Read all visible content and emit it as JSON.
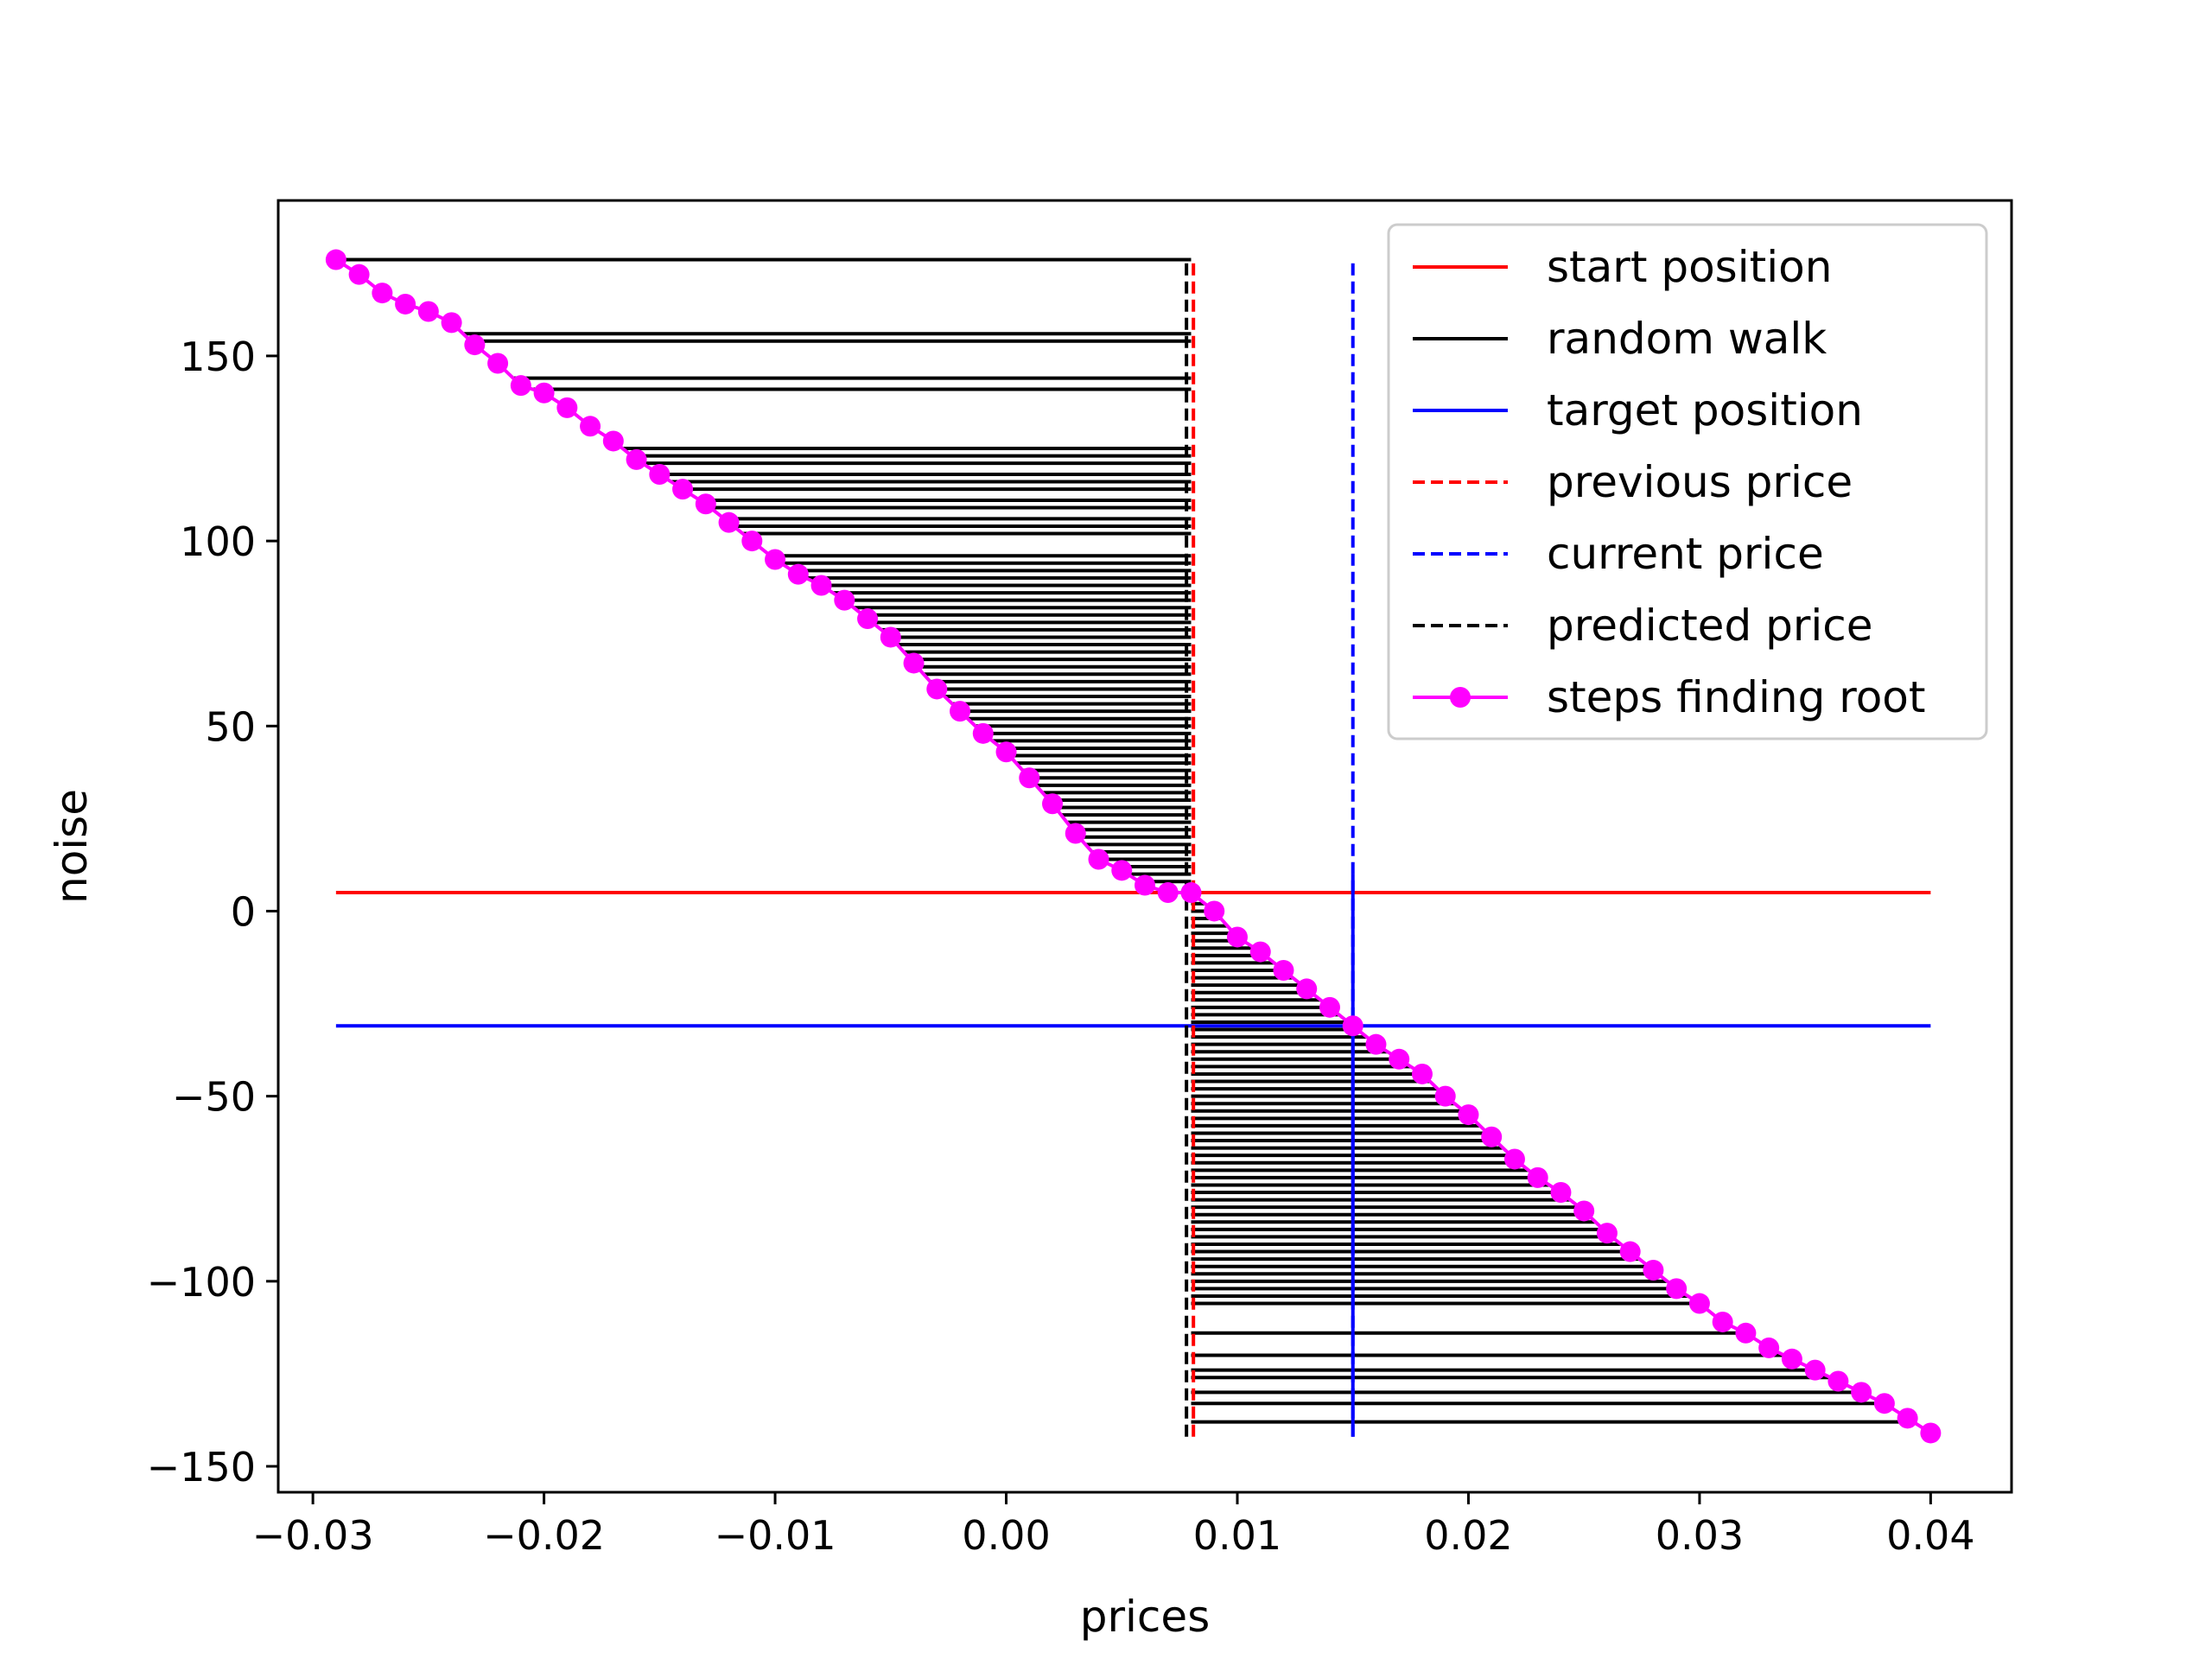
{
  "chart_data": {
    "type": "line",
    "title": "",
    "xlabel": "prices",
    "ylabel": "noise",
    "xlim": [
      -0.0315,
      0.0435
    ],
    "ylim": [
      -157,
      192
    ],
    "xticks": [
      -0.03,
      -0.02,
      -0.01,
      0.0,
      0.01,
      0.02,
      0.03,
      0.04
    ],
    "xtick_labels": [
      "−0.03",
      "−0.02",
      "−0.01",
      "0.00",
      "0.01",
      "0.02",
      "0.03",
      "0.04"
    ],
    "yticks": [
      -150,
      -100,
      -50,
      0,
      50,
      100,
      150
    ],
    "ytick_labels": [
      "−150",
      "−100",
      "−50",
      "0",
      "50",
      "100",
      "150"
    ],
    "grid": false,
    "legend_position": "top-right",
    "colors": {
      "start": "#ff0000",
      "walk": "#000000",
      "target": "#0000ff",
      "previous": "#ff0000",
      "current": "#0000ff",
      "predicted": "#000000",
      "steps": "#ff00ff"
    },
    "series": [
      {
        "name": "start position",
        "style": "solid",
        "color": "#ff0000",
        "hline": {
          "y": 5,
          "x": [
            -0.029,
            0.04
          ]
        }
      },
      {
        "name": "random walk",
        "style": "solid",
        "color": "#000000",
        "segments_y": [
          176,
          156,
          154,
          144,
          141,
          125,
          123,
          121,
          118,
          116,
          114,
          111,
          109,
          106,
          104,
          102,
          96,
          94,
          92,
          90,
          88,
          86,
          84,
          82,
          80,
          78,
          76,
          74,
          72,
          70,
          68,
          66,
          64,
          62,
          60,
          58,
          56,
          54,
          52,
          50,
          48,
          46,
          44,
          42,
          40,
          38,
          36,
          34,
          32,
          30,
          28,
          26,
          24,
          22,
          20,
          18,
          16,
          14,
          12,
          10,
          8,
          2,
          0,
          -2,
          -4,
          -6,
          -8,
          -10,
          -12,
          -14,
          -16,
          -18,
          -20,
          -22,
          -24,
          -26,
          -28,
          -30,
          -32,
          -34,
          -36,
          -38,
          -40,
          -42,
          -44,
          -46,
          -48,
          -50,
          -52,
          -54,
          -56,
          -58,
          -60,
          -62,
          -64,
          -66,
          -68,
          -70,
          -72,
          -74,
          -76,
          -78,
          -80,
          -82,
          -84,
          -86,
          -88,
          -90,
          -92,
          -94,
          -96,
          -98,
          -100,
          -102,
          -104,
          -106,
          -114,
          -120,
          -124,
          -126,
          -130,
          -133,
          -138
        ],
        "walk_x": 0.008
      },
      {
        "name": "target position",
        "style": "solid",
        "color": "#0000ff",
        "hline": {
          "y": -31,
          "x": [
            -0.029,
            0.04
          ]
        },
        "vline": {
          "x": 0.015,
          "y": [
            -142,
            10
          ]
        }
      },
      {
        "name": "previous price",
        "style": "dashed",
        "color": "#ff0000",
        "vline": {
          "x": 0.0081,
          "y": [
            -142,
            176
          ]
        }
      },
      {
        "name": "current price",
        "style": "dashed",
        "color": "#0000ff",
        "vline": {
          "x": 0.015,
          "y": [
            -142,
            176
          ]
        }
      },
      {
        "name": "predicted price",
        "style": "dashed",
        "color": "#000000",
        "vline": {
          "x": 0.0078,
          "y": [
            -142,
            176
          ]
        }
      },
      {
        "name": "steps finding root",
        "style": "solid-marker",
        "color": "#ff00ff",
        "x": [
          -0.029,
          -0.028,
          -0.027,
          -0.026,
          -0.025,
          -0.024,
          -0.023,
          -0.022,
          -0.021,
          -0.02,
          -0.019,
          -0.018,
          -0.017,
          -0.016,
          -0.015,
          -0.014,
          -0.013,
          -0.012,
          -0.011,
          -0.01,
          -0.009,
          -0.008,
          -0.007,
          -0.006,
          -0.005,
          -0.004,
          -0.003,
          -0.002,
          -0.001,
          0.0,
          0.001,
          0.002,
          0.003,
          0.004,
          0.005,
          0.006,
          0.007,
          0.008,
          0.009,
          0.01,
          0.011,
          0.012,
          0.013,
          0.014,
          0.015,
          0.016,
          0.017,
          0.018,
          0.019,
          0.02,
          0.021,
          0.022,
          0.023,
          0.024,
          0.025,
          0.026,
          0.027,
          0.028,
          0.029,
          0.03,
          0.031,
          0.032,
          0.033,
          0.034,
          0.035,
          0.036,
          0.037,
          0.038,
          0.039,
          0.04
        ],
        "y": [
          176,
          172,
          167,
          164,
          162,
          159,
          153,
          148,
          142,
          140,
          136,
          131,
          127,
          122,
          118,
          114,
          110,
          105,
          100,
          95,
          91,
          88,
          84,
          79,
          74,
          67,
          60,
          54,
          48,
          43,
          36,
          29,
          21,
          14,
          11,
          7,
          5,
          5,
          0,
          -7,
          -11,
          -16,
          -21,
          -26,
          -31,
          -36,
          -40,
          -44,
          -50,
          -55,
          -61,
          -67,
          -72,
          -76,
          -81,
          -87,
          -92,
          -97,
          -102,
          -106,
          -111,
          -114,
          -118,
          -121,
          -124,
          -127,
          -130,
          -133,
          -137,
          -141
        ]
      }
    ]
  }
}
